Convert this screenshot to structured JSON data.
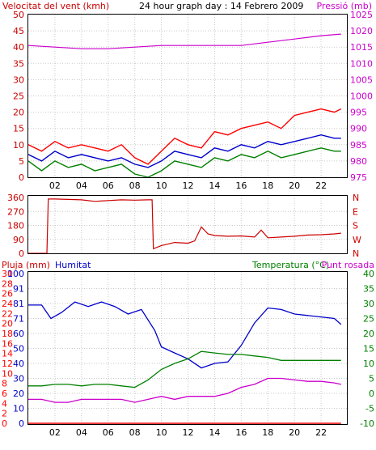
{
  "graph_day_title": "24 hour graph day : 14 Febrero 2009",
  "colors": {
    "wind": "#cc0000",
    "gust": "#ff0000",
    "wind_avg": "#0000cc",
    "wind_low": "#008000",
    "pressure": "#cc00cc",
    "direction": "#cc0000",
    "rain": "#ff0000",
    "humidity": "#0000cc",
    "temperature": "#008000",
    "dewpoint": "#cc00cc",
    "grid": "#c8c8c8",
    "frame": "#000000"
  },
  "chart_data": [
    {
      "type": "line",
      "left_label": "Velocitat del vent (kmh)",
      "right_label": "Pressió (mb)",
      "x_ticks": [
        "02",
        "04",
        "06",
        "08",
        "10",
        "12",
        "14",
        "16",
        "18",
        "20",
        "22"
      ],
      "x_range_hours": [
        0,
        24
      ],
      "left_ticks": [
        "0",
        "5",
        "10",
        "15",
        "20",
        "25",
        "30",
        "35",
        "40",
        "45",
        "50"
      ],
      "left_range": [
        0,
        50
      ],
      "right_ticks": [
        "975",
        "980",
        "985",
        "990",
        "995",
        "1000",
        "1005",
        "1010",
        "1015",
        "1020",
        "1025"
      ],
      "right_range": [
        975,
        1025
      ],
      "series": [
        {
          "key": "pressure",
          "axis": "right",
          "x": [
            0,
            2,
            4,
            6,
            8,
            10,
            12,
            14,
            16,
            18,
            20,
            22,
            23.5
          ],
          "values": [
            1015.5,
            1015,
            1014.5,
            1014.5,
            1015,
            1015.5,
            1015.5,
            1015.5,
            1015.5,
            1016.5,
            1017.5,
            1018.5,
            1019
          ]
        },
        {
          "key": "wind",
          "axis": "left",
          "x": [
            0,
            1,
            2,
            3,
            4,
            5,
            6,
            7,
            8,
            9,
            10,
            11,
            12,
            13,
            14,
            15,
            16,
            17,
            18,
            19,
            20,
            21,
            22,
            23,
            23.5
          ],
          "values": [
            10,
            8,
            11,
            9,
            10,
            9,
            8,
            10,
            6,
            4,
            8,
            12,
            10,
            9,
            14,
            13,
            15,
            16,
            17,
            15,
            19,
            20,
            21,
            20,
            21
          ]
        },
        {
          "key": "wind_avg",
          "axis": "left",
          "x": [
            0,
            1,
            2,
            3,
            4,
            5,
            6,
            7,
            8,
            9,
            10,
            11,
            12,
            13,
            14,
            15,
            16,
            17,
            18,
            19,
            20,
            21,
            22,
            23,
            23.5
          ],
          "values": [
            7,
            5,
            8,
            6,
            7,
            6,
            5,
            6,
            4,
            3,
            5,
            8,
            7,
            6,
            9,
            8,
            10,
            9,
            11,
            10,
            11,
            12,
            13,
            12,
            12
          ]
        },
        {
          "key": "wind_low",
          "axis": "left",
          "x": [
            0,
            1,
            2,
            3,
            4,
            5,
            6,
            7,
            8,
            9,
            10,
            11,
            12,
            13,
            14,
            15,
            16,
            17,
            18,
            19,
            20,
            21,
            22,
            23,
            23.5
          ],
          "values": [
            5,
            2,
            5,
            3,
            4,
            2,
            3,
            4,
            1,
            0,
            2,
            5,
            4,
            3,
            6,
            5,
            7,
            6,
            8,
            6,
            7,
            8,
            9,
            8,
            8
          ]
        }
      ]
    },
    {
      "type": "line",
      "left_ticks": [
        "0",
        "90",
        "180",
        "270",
        "360"
      ],
      "left_range": [
        0,
        360
      ],
      "right_ticks": [
        "N",
        "W",
        "S",
        "E",
        "N"
      ],
      "x_range_hours": [
        0,
        24
      ],
      "series": [
        {
          "key": "direction",
          "x": [
            0,
            1.4,
            1.5,
            2,
            4,
            5,
            6,
            7,
            8,
            9,
            9.3,
            9.4,
            10,
            11,
            12,
            12.5,
            13,
            13.5,
            14,
            15,
            16,
            17,
            17.5,
            18,
            19,
            20,
            21,
            22,
            23,
            23.5
          ],
          "values": [
            0,
            0,
            350,
            350,
            345,
            335,
            340,
            345,
            343,
            345,
            345,
            30,
            50,
            70,
            65,
            80,
            170,
            125,
            115,
            110,
            112,
            105,
            150,
            100,
            105,
            110,
            118,
            120,
            125,
            130
          ]
        }
      ]
    },
    {
      "type": "line",
      "left_labels": [
        "Pluja (mm)",
        "Humitat"
      ],
      "right_labels": [
        "Temperatura (°C)",
        "Punt rosada"
      ],
      "x_ticks": [
        "02",
        "04",
        "06",
        "08",
        "10",
        "12",
        "14",
        "16",
        "18",
        "20",
        "22"
      ],
      "x_range_hours": [
        0,
        24
      ],
      "rain_ticks": [
        "0",
        "2",
        "4",
        "6",
        "8",
        "10",
        "12",
        "14",
        "16",
        "18",
        "20",
        "22",
        "24",
        "26",
        "28",
        "30"
      ],
      "rain_range": [
        0,
        30
      ],
      "humidity_ticks": [
        "0",
        "10",
        "20",
        "30",
        "40",
        "50",
        "60",
        "71",
        "81",
        "91",
        "100"
      ],
      "humidity_range": [
        0,
        100
      ],
      "temp_ticks": [
        "-10",
        "-5",
        "0",
        "5",
        "10",
        "15",
        "20",
        "25",
        "30",
        "35",
        "40"
      ],
      "temp_range": [
        -10,
        40
      ],
      "series": [
        {
          "key": "humidity",
          "axis": "humidity",
          "x": [
            0,
            1,
            1.7,
            2.5,
            3.5,
            4.5,
            5.5,
            6.5,
            7.5,
            8.5,
            9.5,
            10,
            11,
            12,
            13,
            14,
            15,
            16,
            17,
            18,
            19,
            20,
            21,
            22,
            23,
            23.5
          ],
          "values": [
            79,
            79,
            70,
            74,
            81,
            78,
            81,
            78,
            73,
            76,
            62,
            51,
            47,
            43,
            37,
            40,
            41,
            52,
            67,
            77,
            76,
            73,
            72,
            71,
            70,
            66
          ]
        },
        {
          "key": "temperature",
          "axis": "temp",
          "x": [
            0,
            1,
            2,
            3,
            4,
            5,
            6,
            7,
            8,
            9,
            10,
            11,
            12,
            13,
            14,
            15,
            16,
            17,
            18,
            19,
            20,
            21,
            22,
            23,
            23.5
          ],
          "values": [
            2.5,
            2.5,
            3,
            3,
            2.5,
            3,
            3,
            2.5,
            2,
            4.5,
            8,
            10,
            11.5,
            14,
            13.5,
            13,
            13,
            12.5,
            12,
            11,
            11,
            11,
            11,
            11,
            11
          ]
        },
        {
          "key": "dewpoint",
          "axis": "temp",
          "x": [
            0,
            1,
            2,
            3,
            4,
            5,
            6,
            7,
            8,
            9,
            10,
            11,
            12,
            13,
            14,
            15,
            16,
            17,
            18,
            19,
            20,
            21,
            22,
            23,
            23.5
          ],
          "values": [
            -2,
            -2,
            -3,
            -3,
            -2,
            -2,
            -2,
            -2,
            -3,
            -2,
            -1,
            -2,
            -1,
            -1,
            -1,
            0,
            2,
            3,
            5,
            5,
            4.5,
            4,
            4,
            3.5,
            3
          ]
        },
        {
          "key": "rain",
          "axis": "rain",
          "x": [
            0,
            23.5
          ],
          "values": [
            0,
            0
          ]
        }
      ]
    }
  ]
}
